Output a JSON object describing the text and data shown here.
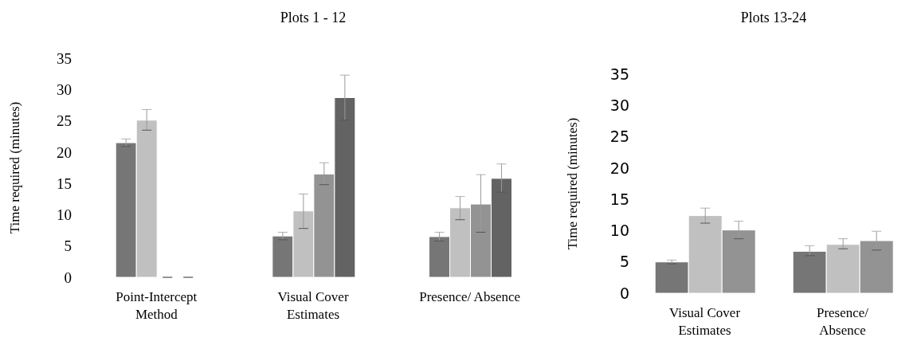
{
  "chart_data": [
    {
      "type": "bar",
      "title": "Plots 1 - 12",
      "ylabel": "Time required (minutes)",
      "categories": [
        "Point-Intercept Method",
        "Visual Cover Estimates",
        "Presence/ Absence"
      ],
      "ylim": [
        0,
        35
      ],
      "yticks": [
        0,
        5,
        10,
        15,
        20,
        25,
        30,
        35
      ],
      "series": [
        {
          "color": "#767676",
          "values": [
            21.5,
            6.6,
            6.5
          ],
          "errors": [
            [
              20.9,
              22.1
            ],
            [
              6.0,
              7.2
            ],
            [
              5.8,
              7.2
            ]
          ]
        },
        {
          "color": "#c0c0c0",
          "values": [
            25.1,
            10.6,
            11.1
          ],
          "errors": [
            [
              23.5,
              26.8
            ],
            [
              7.8,
              13.3
            ],
            [
              9.2,
              12.9
            ]
          ]
        },
        {
          "color": "#939393",
          "values": [
            0,
            16.5,
            11.7
          ],
          "errors": [
            [
              0,
              0
            ],
            [
              14.8,
              18.3
            ],
            [
              7.2,
              16.4
            ]
          ]
        },
        {
          "color": "#636363",
          "values": [
            0,
            28.7,
            15.8
          ],
          "errors": [
            [
              0,
              0
            ],
            [
              25.1,
              32.3
            ],
            [
              13.6,
              18.1
            ]
          ]
        }
      ]
    },
    {
      "type": "bar",
      "title": "Plots 13-24",
      "ylabel": "Time required (minutes)",
      "categories": [
        "Visual Cover Estimates",
        "Presence/ Absence"
      ],
      "ylim": [
        0,
        35
      ],
      "yticks": [
        0,
        5,
        10,
        15,
        20,
        25,
        30,
        35
      ],
      "series": [
        {
          "color": "#767676",
          "values": [
            5.0,
            6.7
          ],
          "errors": [
            [
              4.7,
              5.3
            ],
            [
              6.0,
              7.6
            ]
          ]
        },
        {
          "color": "#c0c0c0",
          "values": [
            12.4,
            7.8
          ],
          "errors": [
            [
              11.2,
              13.6
            ],
            [
              7.1,
              8.7
            ]
          ]
        },
        {
          "color": "#939393",
          "values": [
            10.1,
            8.4
          ],
          "errors": [
            [
              8.7,
              11.5
            ],
            [
              6.9,
              9.9
            ]
          ]
        }
      ]
    }
  ]
}
